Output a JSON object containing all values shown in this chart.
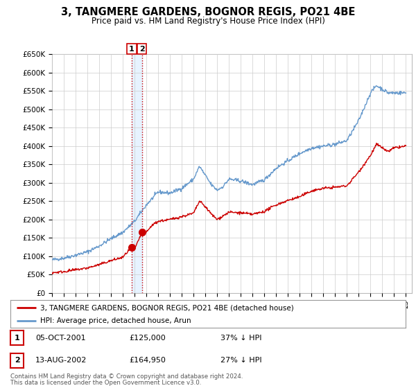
{
  "title": "3, TANGMERE GARDENS, BOGNOR REGIS, PO21 4BE",
  "subtitle": "Price paid vs. HM Land Registry's House Price Index (HPI)",
  "ylim": [
    0,
    650000
  ],
  "yticks": [
    0,
    50000,
    100000,
    150000,
    200000,
    250000,
    300000,
    350000,
    400000,
    450000,
    500000,
    550000,
    600000,
    650000
  ],
  "ytick_labels": [
    "£0",
    "£50K",
    "£100K",
    "£150K",
    "£200K",
    "£250K",
    "£300K",
    "£350K",
    "£400K",
    "£450K",
    "£500K",
    "£550K",
    "£600K",
    "£650K"
  ],
  "hpi_color": "#6699cc",
  "price_color": "#cc0000",
  "sale1_date": 2001.75,
  "sale1_price": 125000,
  "sale2_date": 2002.62,
  "sale2_price": 164950,
  "vline_color": "#cc0000",
  "shade_color": "#ddeeff",
  "legend_line1": "3, TANGMERE GARDENS, BOGNOR REGIS, PO21 4BE (detached house)",
  "legend_line2": "HPI: Average price, detached house, Arun",
  "table_row1": [
    "1",
    "05-OCT-2001",
    "£125,000",
    "37% ↓ HPI"
  ],
  "table_row2": [
    "2",
    "13-AUG-2002",
    "£164,950",
    "27% ↓ HPI"
  ],
  "footnote1": "Contains HM Land Registry data © Crown copyright and database right 2024.",
  "footnote2": "This data is licensed under the Open Government Licence v3.0.",
  "background_color": "#ffffff",
  "grid_color": "#cccccc"
}
